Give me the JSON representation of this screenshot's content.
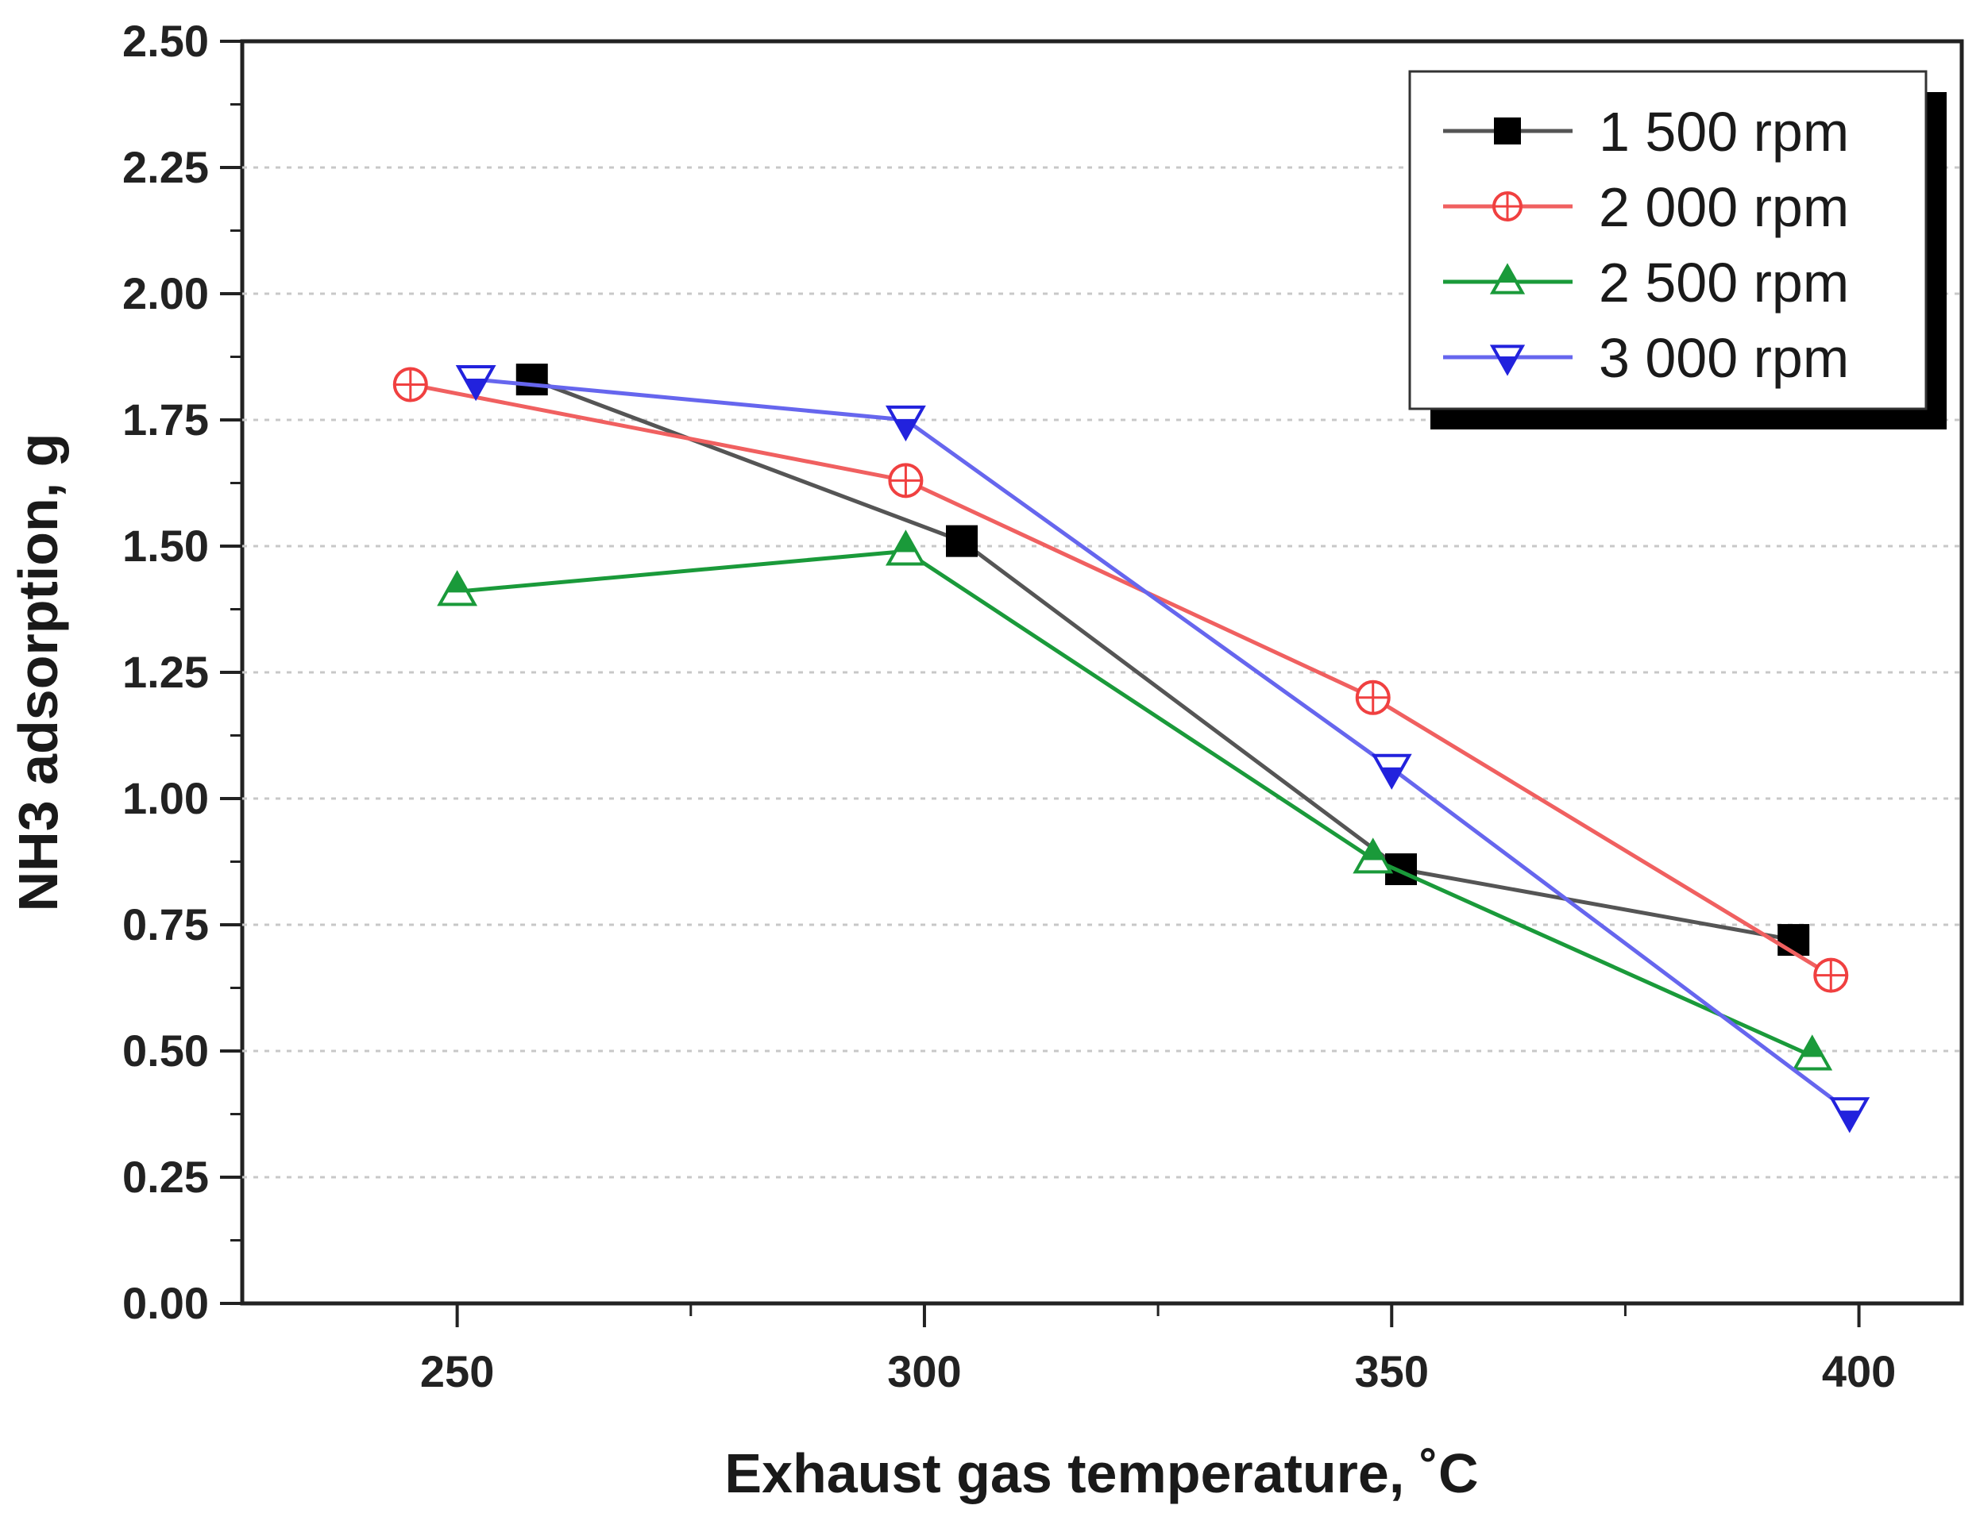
{
  "chart_data": {
    "type": "line",
    "title": "",
    "xlabel": "Exhaust gas temperature, ˚C",
    "ylabel": "NH3 adsorption, g",
    "xlim": [
      227,
      411
    ],
    "ylim": [
      0,
      2.5
    ],
    "xticks": [
      "250",
      "300",
      "350",
      "400"
    ],
    "xtick_values": [
      250,
      300,
      350,
      400
    ],
    "yticks": [
      "0.00",
      "0.25",
      "0.50",
      "0.75",
      "1.00",
      "1.25",
      "1.50",
      "1.75",
      "2.00",
      "2.25",
      "2.50"
    ],
    "ytick_values": [
      0,
      0.25,
      0.5,
      0.75,
      1.0,
      1.25,
      1.5,
      1.75,
      2.0,
      2.25,
      2.5
    ],
    "grid": true,
    "legend_position": "top-right",
    "series": [
      {
        "name": "1 500 rpm",
        "color": "#555555",
        "marker_color": "#000000",
        "marker": "filled-square",
        "x": [
          258,
          304,
          351,
          393
        ],
        "y": [
          1.83,
          1.51,
          0.86,
          0.72
        ]
      },
      {
        "name": "2 000 rpm",
        "color": "#f06060",
        "marker_color": "#f04040",
        "marker": "circle-plus",
        "x": [
          245,
          298,
          348,
          397
        ],
        "y": [
          1.82,
          1.63,
          1.2,
          0.65
        ]
      },
      {
        "name": "2 500 rpm",
        "color": "#1a9a3a",
        "marker_color": "#1a9a3a",
        "marker": "triangle-up-half",
        "x": [
          250,
          298,
          348,
          395
        ],
        "y": [
          1.41,
          1.49,
          0.88,
          0.49
        ]
      },
      {
        "name": "3 000 rpm",
        "color": "#6666ee",
        "marker_color": "#2222dd",
        "marker": "triangle-down-half",
        "x": [
          252,
          298,
          350,
          399
        ],
        "y": [
          1.83,
          1.75,
          1.06,
          0.38
        ]
      }
    ]
  }
}
